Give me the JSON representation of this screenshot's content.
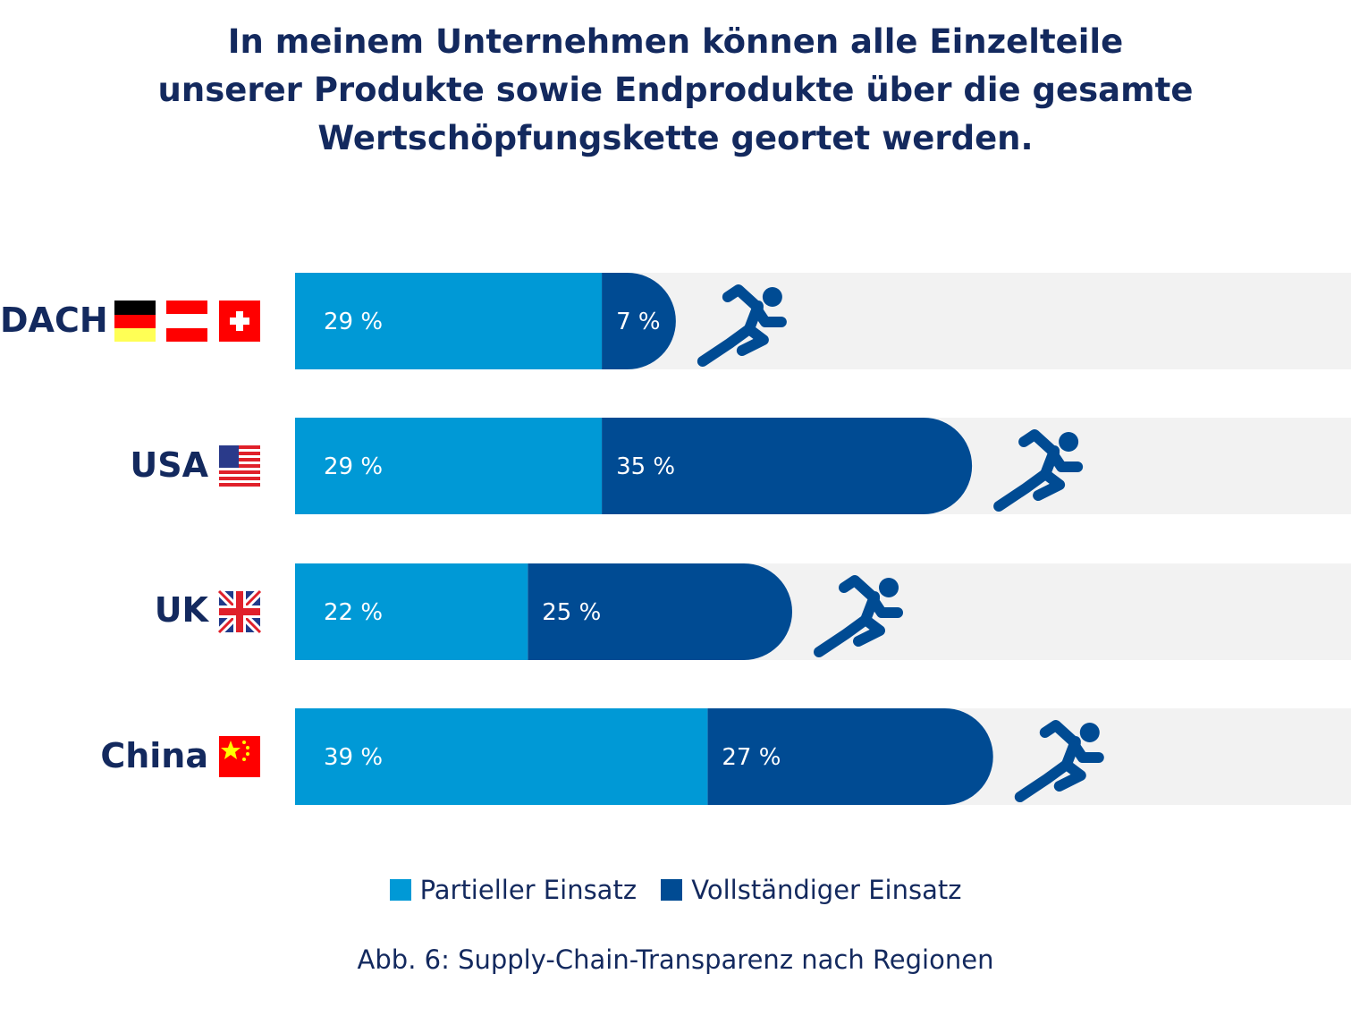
{
  "chart_data": {
    "type": "bar",
    "orientation": "horizontal",
    "stacked": true,
    "title": [
      "In meinem Unternehmen können alle Einzelteile",
      "unserer Produkte sowie Endprodukte über die gesamte",
      "Wertschöpfungskette geortet werden."
    ],
    "categories": [
      "DACH",
      "USA",
      "UK",
      "China"
    ],
    "series": [
      {
        "name": "Partieller Einsatz",
        "values": [
          29,
          29,
          22,
          39
        ],
        "labels": [
          "29 %",
          "29 %",
          "22 %",
          "39 %"
        ],
        "color": "#0099d6"
      },
      {
        "name": "Vollständiger Einsatz",
        "values": [
          7,
          35,
          25,
          27
        ],
        "labels": [
          "7 %",
          "35 %",
          "25 %",
          "27 %"
        ],
        "color": "#004b93"
      }
    ],
    "xlim": [
      0,
      100
    ],
    "track_color": "#f2f2f2",
    "legend_position": "bottom",
    "caption": "Abb. 6: Supply-Chain-Transparenz nach Regionen",
    "icons": [
      "runner-icon"
    ],
    "flags": {
      "DACH": [
        "germany",
        "austria",
        "switzerland"
      ],
      "USA": [
        "usa"
      ],
      "UK": [
        "uk"
      ],
      "China": [
        "china"
      ]
    }
  }
}
